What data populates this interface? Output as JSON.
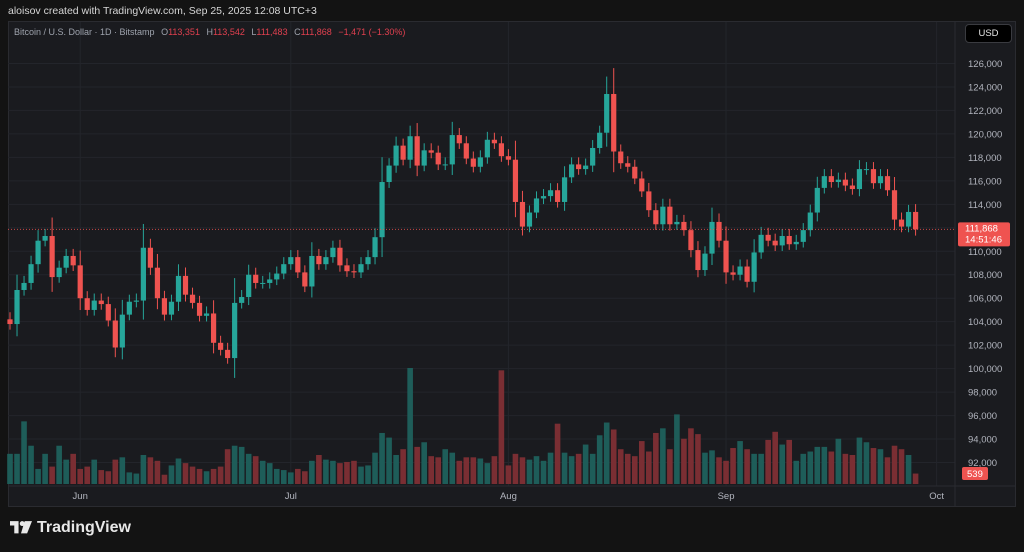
{
  "credit": "aloisov created with TradingView.com, Sep 25, 2025 12:08 UTC+3",
  "legend": {
    "symbol": "Bitcoin / U.S. Dollar · 1D · Bitstamp",
    "o_label": "O",
    "o": "113,351",
    "h_label": "H",
    "h": "113,542",
    "l_label": "L",
    "l": "111,483",
    "c_label": "C",
    "c": "111,868",
    "change": "−1,471 (−1.30%)"
  },
  "currency_button": "USD",
  "price_tag": {
    "price": "111,868",
    "countdown": "14:51:46"
  },
  "volume_tag": "539",
  "brand": "TradingView",
  "colors": {
    "up": "#26a69a",
    "down": "#ef5350",
    "vol_up": "#1e5d59",
    "vol_down": "#7a2e33",
    "background": "#1a1b1f",
    "price_line": "#ef5350"
  },
  "chart_data": {
    "type": "candlestick",
    "ylim": [
      90000,
      128000
    ],
    "y_ticks": [
      92000,
      94000,
      96000,
      98000,
      100000,
      102000,
      104000,
      106000,
      108000,
      110000,
      112000,
      114000,
      116000,
      118000,
      120000,
      122000,
      124000,
      126000
    ],
    "y_tick_labels": [
      "92,000",
      "94,000",
      "96,000",
      "98,000",
      "100,000",
      "102,000",
      "104,000",
      "106,000",
      "108,000",
      "110,000",
      "112,000",
      "114,000",
      "116,000",
      "118,000",
      "120,000",
      "122,000",
      "124,000",
      "126,000"
    ],
    "x_labels": [
      "Jun",
      "Jul",
      "Aug",
      "Sep",
      "Oct"
    ],
    "x_label_dates": [
      "2025-06-01",
      "2025-07-01",
      "2025-08-01",
      "2025-09-01",
      "2025-10-01"
    ],
    "start_date": "2025-05-22",
    "last_close": 111868,
    "closes": [
      103800,
      106700,
      107300,
      108900,
      110900,
      111300,
      107800,
      108600,
      109600,
      108800,
      106000,
      105000,
      105800,
      105500,
      104100,
      101800,
      104600,
      105700,
      105800,
      110300,
      108600,
      106000,
      104600,
      105700,
      107900,
      106300,
      105600,
      104500,
      104700,
      102200,
      101600,
      100900,
      105600,
      106100,
      108000,
      107300,
      107300,
      107600,
      108100,
      108900,
      109500,
      108200,
      107000,
      109600,
      108900,
      109500,
      110300,
      108800,
      108300,
      108200,
      108900,
      109500,
      111200,
      115900,
      117300,
      119000,
      117800,
      119800,
      117300,
      118600,
      118400,
      117400,
      117400,
      119900,
      119200,
      117900,
      117200,
      118000,
      119500,
      119200,
      118100,
      117800,
      114200,
      112100,
      113300,
      114500,
      114700,
      115200,
      114200,
      116300,
      117400,
      117000,
      117300,
      118800,
      120100,
      123400,
      118500,
      117500,
      117200,
      116200,
      115100,
      113500,
      112300,
      113800,
      112300,
      112500,
      111800,
      110100,
      108400,
      109800,
      112500,
      110900,
      108200,
      108000,
      108700,
      107400,
      109900,
      111400,
      110900,
      110500,
      111300,
      110600,
      110800,
      111800,
      113300,
      115400,
      116400,
      115900,
      116100,
      115600,
      115300,
      117000,
      117000,
      115800,
      116400,
      115200,
      112700,
      112100,
      113350,
      111868
    ],
    "volumes_relative": [
      0.26,
      0.26,
      0.54,
      0.33,
      0.13,
      0.26,
      0.15,
      0.33,
      0.21,
      0.26,
      0.13,
      0.15,
      0.21,
      0.12,
      0.11,
      0.21,
      0.23,
      0.1,
      0.09,
      0.25,
      0.23,
      0.2,
      0.08,
      0.16,
      0.22,
      0.18,
      0.15,
      0.13,
      0.11,
      0.13,
      0.15,
      0.3,
      0.33,
      0.32,
      0.26,
      0.24,
      0.2,
      0.18,
      0.13,
      0.12,
      0.1,
      0.13,
      0.11,
      0.2,
      0.25,
      0.21,
      0.2,
      0.18,
      0.19,
      0.2,
      0.15,
      0.16,
      0.27,
      0.44,
      0.4,
      0.25,
      0.3,
      1.0,
      0.32,
      0.36,
      0.24,
      0.23,
      0.3,
      0.27,
      0.2,
      0.23,
      0.23,
      0.22,
      0.18,
      0.24,
      0.98,
      0.16,
      0.26,
      0.23,
      0.21,
      0.24,
      0.2,
      0.27,
      0.52,
      0.27,
      0.24,
      0.26,
      0.34,
      0.26,
      0.42,
      0.53,
      0.47,
      0.3,
      0.26,
      0.24,
      0.37,
      0.28,
      0.44,
      0.48,
      0.3,
      0.6,
      0.39,
      0.48,
      0.43,
      0.27,
      0.29,
      0.23,
      0.2,
      0.31,
      0.37,
      0.3,
      0.26,
      0.26,
      0.38,
      0.45,
      0.34,
      0.38,
      0.2,
      0.26,
      0.28,
      0.32,
      0.32,
      0.28,
      0.39,
      0.26,
      0.25,
      0.4,
      0.36,
      0.31,
      0.3,
      0.23,
      0.33,
      0.3,
      0.25,
      0.09
    ]
  }
}
